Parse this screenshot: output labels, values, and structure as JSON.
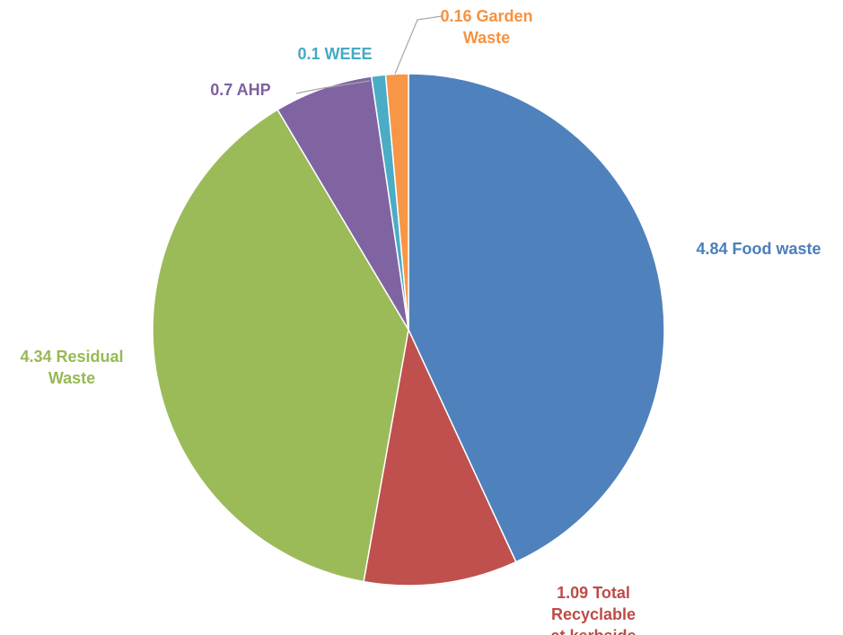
{
  "chart_data": {
    "type": "pie",
    "categories": [
      "Food waste",
      "Total Recyclable at kerbside",
      "Residual Waste",
      "AHP",
      "WEEE",
      "Garden Waste"
    ],
    "values": [
      4.84,
      1.09,
      4.34,
      0.7,
      0.1,
      0.16
    ],
    "colors": [
      "#4f81bd",
      "#c0504d",
      "#9bbb59",
      "#8064a2",
      "#4bacc6",
      "#f79646"
    ],
    "label_colors": [
      "#4a7ebb",
      "#be4b48",
      "#98b954",
      "#7d60a0",
      "#46aac5",
      "#f69240"
    ]
  }
}
